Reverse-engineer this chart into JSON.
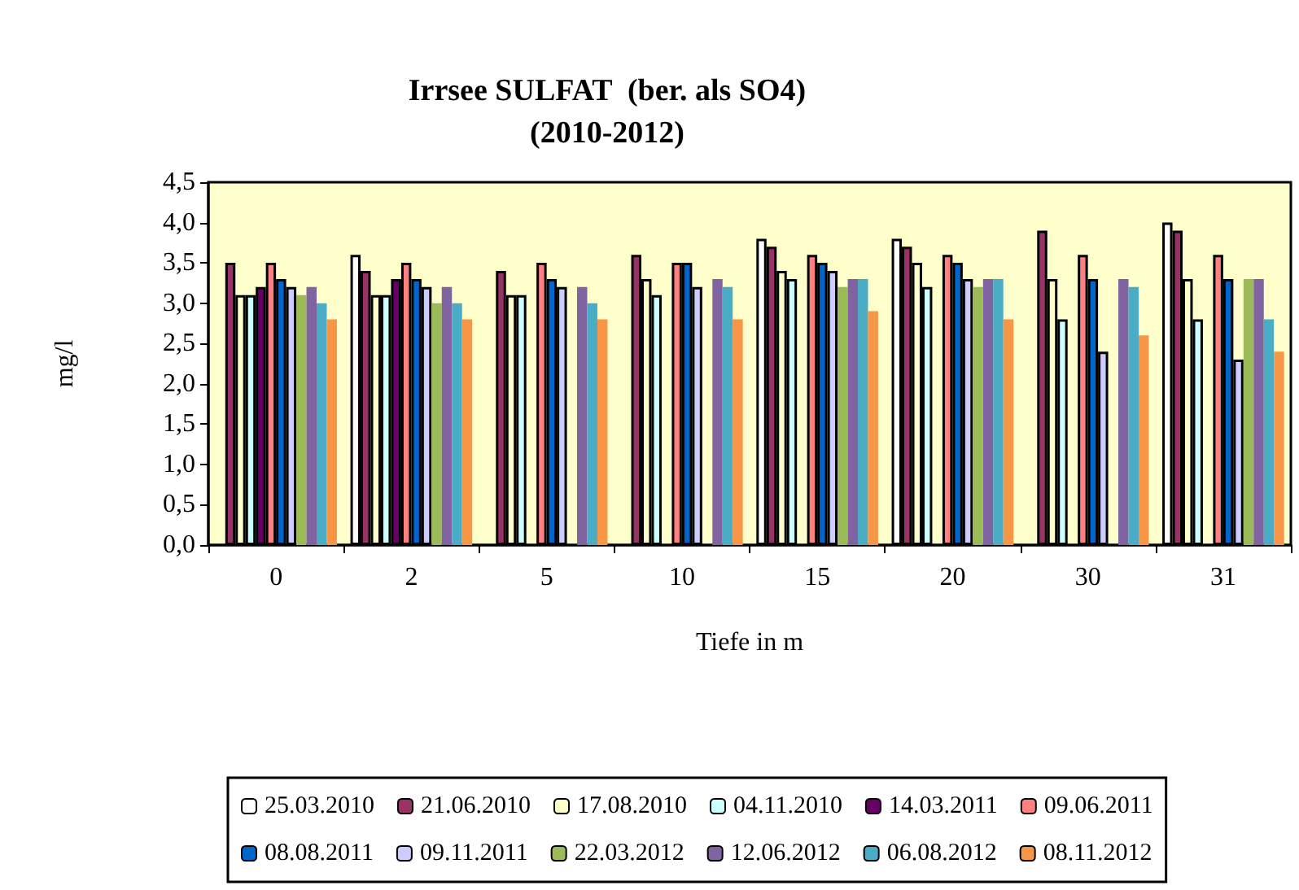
{
  "chart_data": {
    "type": "bar",
    "title": "Irrsee SULFAT  (ber. als SO4)\n(2010-2012)",
    "xlabel": "Tiefe in m",
    "ylabel": "mg/l",
    "categories": [
      "0",
      "2",
      "5",
      "10",
      "15",
      "20",
      "30",
      "31"
    ],
    "ylim": [
      0,
      4.5
    ],
    "yticks": [
      {
        "value": 0,
        "label": "0,0"
      },
      {
        "value": 0.5,
        "label": "0,5"
      },
      {
        "value": 1,
        "label": "1,0"
      },
      {
        "value": 1.5,
        "label": "1,5"
      },
      {
        "value": 2,
        "label": "2,0"
      },
      {
        "value": 2.5,
        "label": "2,5"
      },
      {
        "value": 3,
        "label": "3,0"
      },
      {
        "value": 3.5,
        "label": "3,5"
      },
      {
        "value": 4,
        "label": "4,0"
      },
      {
        "value": 4.5,
        "label": "4,5"
      }
    ],
    "grid": false,
    "legend": "bottom",
    "series": [
      {
        "name": "25.03.2010",
        "color": "#ffffff",
        "values": [
          null,
          3.6,
          null,
          null,
          3.8,
          3.8,
          null,
          4.0
        ]
      },
      {
        "name": "21.06.2010",
        "color": "#993366",
        "values": [
          3.5,
          3.4,
          3.4,
          3.6,
          3.7,
          3.7,
          3.9,
          3.9
        ]
      },
      {
        "name": "17.08.2010",
        "color": "#ffffcc",
        "values": [
          3.1,
          3.1,
          3.1,
          3.3,
          3.4,
          3.5,
          3.3,
          3.3
        ]
      },
      {
        "name": "04.11.2010",
        "color": "#ccffff",
        "values": [
          3.1,
          3.1,
          3.1,
          3.1,
          3.3,
          3.2,
          2.8,
          2.8
        ]
      },
      {
        "name": "14.03.2011",
        "color": "#660066",
        "values": [
          3.2,
          3.3,
          null,
          null,
          null,
          null,
          null,
          null
        ]
      },
      {
        "name": "09.06.2011",
        "color": "#ff8080",
        "values": [
          3.5,
          3.5,
          3.5,
          3.5,
          3.6,
          3.6,
          3.6,
          3.6
        ]
      },
      {
        "name": "08.08.2011",
        "color": "#0066cc",
        "values": [
          3.3,
          3.3,
          3.3,
          3.5,
          3.5,
          3.5,
          3.3,
          3.3
        ]
      },
      {
        "name": "09.11.2011",
        "color": "#ccccff",
        "values": [
          3.2,
          3.2,
          3.2,
          3.2,
          3.4,
          3.3,
          2.4,
          2.3
        ]
      },
      {
        "name": "22.03.2012",
        "color": "#9bbb59",
        "values": [
          3.1,
          3.0,
          null,
          null,
          3.2,
          3.2,
          null,
          3.3
        ]
      },
      {
        "name": "12.06.2012",
        "color": "#8064a2",
        "values": [
          3.2,
          3.2,
          3.2,
          3.3,
          3.3,
          3.3,
          3.3,
          3.3
        ]
      },
      {
        "name": "06.08.2012",
        "color": "#4bacc6",
        "values": [
          3.0,
          3.0,
          3.0,
          3.2,
          3.3,
          3.3,
          3.2,
          2.8
        ]
      },
      {
        "name": "08.11.2012",
        "color": "#f79646",
        "values": [
          2.8,
          2.8,
          2.8,
          2.8,
          2.9,
          2.8,
          2.6,
          2.4
        ]
      }
    ]
  }
}
